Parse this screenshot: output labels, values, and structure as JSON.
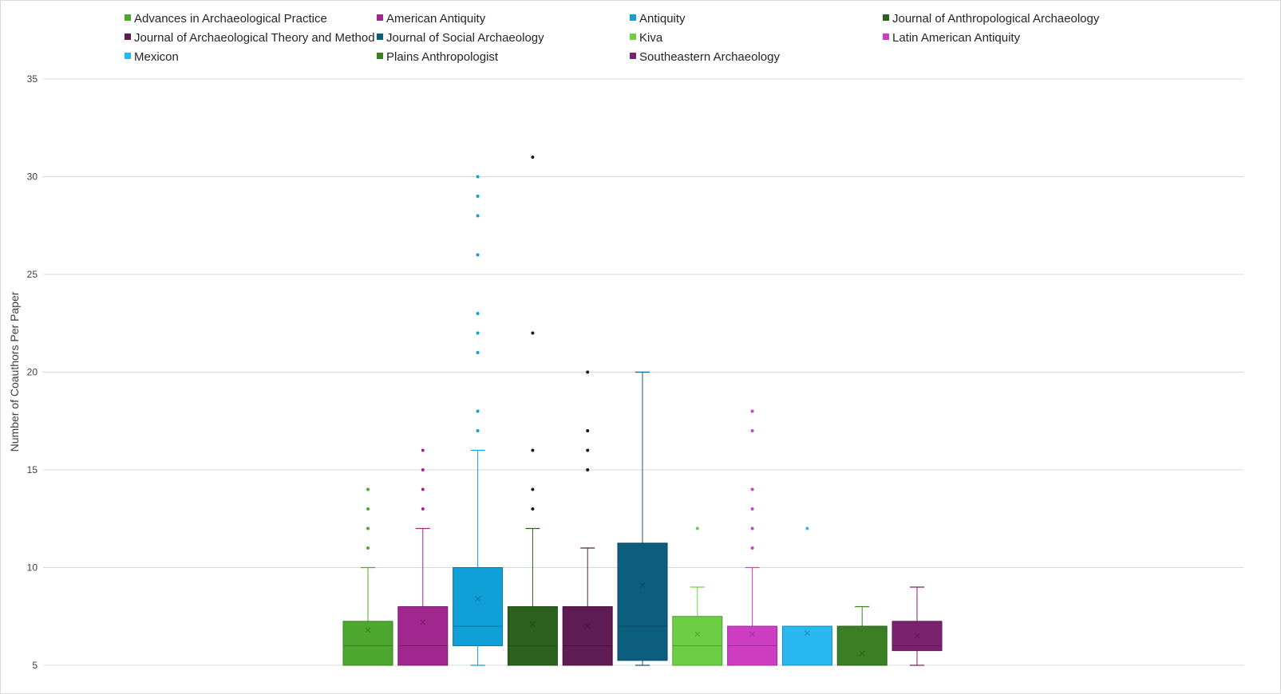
{
  "chart_data": {
    "type": "box",
    "ylabel": "Number of Coauthors Per Paper",
    "ylim": [
      5,
      35
    ],
    "yticks": [
      5,
      10,
      15,
      20,
      25,
      30,
      35
    ],
    "grid": true,
    "legend_position": "top",
    "series": [
      {
        "name": "Advances in Archaeological Practice",
        "color": "#4ea72e",
        "whisker_low": 5,
        "q1": 5,
        "median": 6,
        "q3": 7.25,
        "whisker_high": 10,
        "mean": 6.8,
        "outliers": [
          11,
          12,
          13,
          14
        ]
      },
      {
        "name": "American Antiquity",
        "color": "#a0278e",
        "whisker_low": 5,
        "q1": 5,
        "median": 6,
        "q3": 8,
        "whisker_high": 12,
        "mean": 7.2,
        "outliers": [
          13,
          14,
          15,
          16
        ]
      },
      {
        "name": "Antiquity",
        "color": "#109fd6",
        "whisker_low": 5,
        "q1": 6,
        "median": 7,
        "q3": 10,
        "whisker_high": 16,
        "mean": 8.4,
        "outliers": [
          17,
          18,
          21,
          22,
          23,
          26,
          28,
          29,
          30
        ]
      },
      {
        "name": "Journal of Anthropological Archaeology",
        "color": "#2b611d",
        "whisker_low": 5,
        "q1": 5,
        "median": 6,
        "q3": 8,
        "whisker_high": 12,
        "mean": 7.1,
        "outliers": [
          13,
          14,
          16,
          22,
          31
        ]
      },
      {
        "name": "Journal of Archaeological Theory and Method",
        "color": "#5e1b54",
        "whisker_low": 5,
        "q1": 5,
        "median": 6,
        "q3": 8,
        "whisker_high": 11,
        "mean": 7.0,
        "outliers": [
          15,
          16,
          17,
          20
        ]
      },
      {
        "name": "Journal of Social Archaeology",
        "color": "#0c5e7f",
        "whisker_low": 5,
        "q1": 5.25,
        "median": 7,
        "q3": 11.25,
        "whisker_high": 20,
        "mean": 9.1,
        "outliers": []
      },
      {
        "name": "Kiva",
        "color": "#6ccf43",
        "whisker_low": 5,
        "q1": 5,
        "median": 6,
        "q3": 7.5,
        "whisker_high": 9,
        "mean": 6.6,
        "outliers": [
          12
        ]
      },
      {
        "name": "Latin American Antiquity",
        "color": "#cd3ec2",
        "whisker_low": 5,
        "q1": 5,
        "median": 6,
        "q3": 7,
        "whisker_high": 10,
        "mean": 6.6,
        "outliers": [
          11,
          12,
          13,
          14,
          17,
          18
        ]
      },
      {
        "name": "Mexicon",
        "color": "#29b8ef",
        "whisker_low": 5,
        "q1": 5,
        "median": 5,
        "q3": 7,
        "whisker_high": 7,
        "mean": 6.65,
        "outliers": [
          12
        ]
      },
      {
        "name": "Plains Anthropologist",
        "color": "#3a7f24",
        "whisker_low": 5,
        "q1": 5,
        "median": 5,
        "q3": 7,
        "whisker_high": 8,
        "mean": 5.6,
        "outliers": []
      },
      {
        "name": "Southeastern Archaeology",
        "color": "#7a226d",
        "whisker_low": 5,
        "q1": 5.75,
        "median": 6,
        "q3": 7.25,
        "whisker_high": 9,
        "mean": 6.5,
        "outliers": []
      }
    ]
  }
}
